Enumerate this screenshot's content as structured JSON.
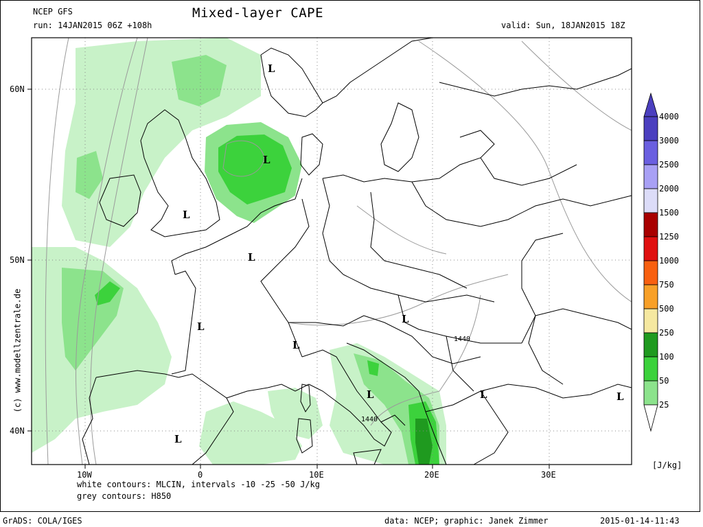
{
  "header": {
    "model": "NCEP GFS",
    "run": "run: 14JAN2015 06Z +108h",
    "title": "Mixed-layer CAPE",
    "valid": "valid: Sun, 18JAN2015 18Z"
  },
  "axes": {
    "lat_labels": [
      "60N",
      "50N",
      "40N"
    ],
    "lon_labels": [
      "10W",
      "0",
      "10E",
      "20E",
      "30E"
    ]
  },
  "colorbar": {
    "levels": [
      "4000",
      "3000",
      "2500",
      "2000",
      "1500",
      "1250",
      "1000",
      "750",
      "500",
      "250",
      "100",
      "50",
      "25"
    ],
    "colors": [
      "#4b3fbf",
      "#6a5fe0",
      "#a8a0f5",
      "#dcdcf8",
      "#a80000",
      "#e01010",
      "#f86010",
      "#f8a028",
      "#f5e8a0",
      "#1f9a1f",
      "#3cd23c",
      "#8ce38c",
      "#c8f2c8"
    ],
    "unit": "[J/kg]"
  },
  "map": {
    "pressure_lows": [
      "L",
      "L",
      "L",
      "L",
      "L",
      "L",
      "L",
      "L",
      "L",
      "L"
    ],
    "h850_labels": [
      "1440",
      "1440"
    ]
  },
  "footer": {
    "contours_white": "white contours: MLCIN, intervals -10 -25 -50 J/kg",
    "contours_grey": "grey contours: H850",
    "software": "GrADS: COLA/IGES",
    "credit": "data: NCEP; graphic: Janek Zimmer",
    "timestamp": "2015-01-14-11:43",
    "watermark": "(c) www.modellzentrale.de"
  },
  "colors": {
    "cape_light": "#c8f2c8",
    "cape_mid": "#8ce38c",
    "cape_strong": "#3cd23c",
    "cape_max": "#1f9a1f",
    "grid": "#888888",
    "contour": "#9a9a9a"
  }
}
